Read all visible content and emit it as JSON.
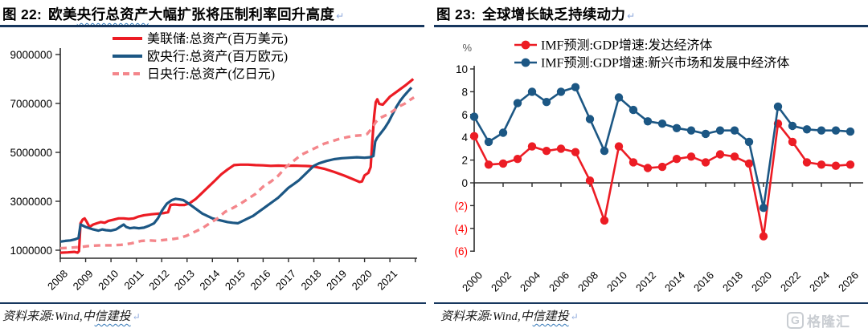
{
  "colors": {
    "rule_navy": "#17375e",
    "axis_black": "#2b2b2b",
    "series_red": "#ec1c24",
    "series_blue": "#1c5784",
    "series_pink": "#f4868b",
    "negative_tick_red": "#ff0000",
    "percent_gray": "#595959",
    "logo_gray": "#c9cdd2"
  },
  "left_panel": {
    "title_prefix": "图 22:",
    "title_pre": "欧美",
    "title_wavy": "央行总资产",
    "title_post": "大幅扩张将压制利率回升高度",
    "paragraph_mark": "↵",
    "source_pre": "资料来源:Wind,中",
    "source_wavy": "信建投",
    "source_mark": "↵"
  },
  "right_panel": {
    "title_prefix": "图 23:",
    "title_text": "全球增长缺乏持续动力",
    "paragraph_mark": "↵",
    "source_pre": "资料来源:Wind,中",
    "source_wavy": "信建投",
    "source_mark": "↵",
    "logo_letter": "G",
    "logo_text": "格隆汇"
  },
  "chart_data": [
    {
      "type": "line",
      "title": "欧美央行总资产大幅扩张将压制利率回升高度",
      "xlabel": "",
      "ylabel": "",
      "ylim": [
        1000000,
        9200000
      ],
      "y_ticks": [
        1000000,
        3000000,
        5000000,
        7000000,
        9000000
      ],
      "x_ticks": [
        2008,
        2009,
        2010,
        2011,
        2012,
        2013,
        2014,
        2015,
        2016,
        2017,
        2018,
        2019,
        2020,
        2021,
        2022
      ],
      "x_labels": [
        2008,
        2009,
        2010,
        2011,
        2012,
        2013,
        2014,
        2015,
        2016,
        2017,
        2018,
        2019,
        2020,
        2021
      ],
      "grid": false,
      "legend_position": "top-center",
      "series": [
        {
          "name": "美联储:总资产(百万美元)",
          "color": "#ec1c24",
          "dash": "solid",
          "points": [
            [
              2008.0,
              900000
            ],
            [
              2008.3,
              910000
            ],
            [
              2008.55,
              930000
            ],
            [
              2008.68,
              900000
            ],
            [
              2008.74,
              960000
            ],
            [
              2008.8,
              2100000
            ],
            [
              2008.88,
              2250000
            ],
            [
              2008.96,
              2300000
            ],
            [
              2009.05,
              2150000
            ],
            [
              2009.15,
              1950000
            ],
            [
              2009.3,
              2050000
            ],
            [
              2009.45,
              2100000
            ],
            [
              2009.6,
              2150000
            ],
            [
              2009.75,
              2120000
            ],
            [
              2009.9,
              2200000
            ],
            [
              2010.1,
              2250000
            ],
            [
              2010.3,
              2300000
            ],
            [
              2010.5,
              2300000
            ],
            [
              2010.7,
              2280000
            ],
            [
              2010.9,
              2300000
            ],
            [
              2011.1,
              2380000
            ],
            [
              2011.3,
              2430000
            ],
            [
              2011.6,
              2470000
            ],
            [
              2011.9,
              2500000
            ],
            [
              2012.1,
              2520000
            ],
            [
              2012.25,
              2550000
            ],
            [
              2012.35,
              2850000
            ],
            [
              2012.5,
              2870000
            ],
            [
              2012.7,
              2850000
            ],
            [
              2012.9,
              2850000
            ],
            [
              2013.1,
              2920000
            ],
            [
              2013.35,
              3100000
            ],
            [
              2013.6,
              3350000
            ],
            [
              2013.85,
              3600000
            ],
            [
              2014.1,
              3850000
            ],
            [
              2014.35,
              4100000
            ],
            [
              2014.6,
              4300000
            ],
            [
              2014.85,
              4480000
            ],
            [
              2015.1,
              4500000
            ],
            [
              2015.4,
              4500000
            ],
            [
              2015.7,
              4480000
            ],
            [
              2016.0,
              4470000
            ],
            [
              2016.3,
              4450000
            ],
            [
              2016.6,
              4460000
            ],
            [
              2016.9,
              4450000
            ],
            [
              2017.2,
              4460000
            ],
            [
              2017.5,
              4450000
            ],
            [
              2017.8,
              4440000
            ],
            [
              2018.0,
              4420000
            ],
            [
              2018.4,
              4330000
            ],
            [
              2018.8,
              4200000
            ],
            [
              2019.2,
              4050000
            ],
            [
              2019.5,
              3920000
            ],
            [
              2019.8,
              3790000
            ],
            [
              2019.9,
              3810000
            ],
            [
              2020.0,
              4060000
            ],
            [
              2020.15,
              4160000
            ],
            [
              2020.24,
              4400000
            ],
            [
              2020.3,
              5400000
            ],
            [
              2020.38,
              6500000
            ],
            [
              2020.44,
              7050000
            ],
            [
              2020.5,
              7170000
            ],
            [
              2020.58,
              6980000
            ],
            [
              2020.72,
              6950000
            ],
            [
              2020.85,
              7100000
            ],
            [
              2021.0,
              7280000
            ],
            [
              2021.2,
              7430000
            ],
            [
              2021.4,
              7580000
            ],
            [
              2021.6,
              7730000
            ],
            [
              2021.8,
              7900000
            ],
            [
              2021.92,
              8000000
            ]
          ]
        },
        {
          "name": "欧央行:总资产(百万欧元)",
          "color": "#1c5784",
          "dash": "solid",
          "points": [
            [
              2008.0,
              1350000
            ],
            [
              2008.2,
              1380000
            ],
            [
              2008.4,
              1400000
            ],
            [
              2008.6,
              1450000
            ],
            [
              2008.72,
              1500000
            ],
            [
              2008.8,
              2050000
            ],
            [
              2008.9,
              2000000
            ],
            [
              2009.0,
              1950000
            ],
            [
              2009.15,
              1900000
            ],
            [
              2009.3,
              1850000
            ],
            [
              2009.5,
              1800000
            ],
            [
              2009.65,
              1850000
            ],
            [
              2009.8,
              1820000
            ],
            [
              2010.0,
              1800000
            ],
            [
              2010.2,
              1850000
            ],
            [
              2010.35,
              1950000
            ],
            [
              2010.5,
              2050000
            ],
            [
              2010.6,
              1950000
            ],
            [
              2010.75,
              1900000
            ],
            [
              2010.9,
              1920000
            ],
            [
              2011.1,
              1900000
            ],
            [
              2011.3,
              1920000
            ],
            [
              2011.5,
              2000000
            ],
            [
              2011.7,
              2100000
            ],
            [
              2011.85,
              2300000
            ],
            [
              2012.0,
              2600000
            ],
            [
              2012.2,
              2900000
            ],
            [
              2012.4,
              3050000
            ],
            [
              2012.55,
              3100000
            ],
            [
              2012.7,
              3080000
            ],
            [
              2012.85,
              3050000
            ],
            [
              2013.0,
              2950000
            ],
            [
              2013.2,
              2800000
            ],
            [
              2013.4,
              2650000
            ],
            [
              2013.6,
              2500000
            ],
            [
              2013.8,
              2400000
            ],
            [
              2014.0,
              2300000
            ],
            [
              2014.2,
              2250000
            ],
            [
              2014.4,
              2200000
            ],
            [
              2014.6,
              2150000
            ],
            [
              2014.8,
              2120000
            ],
            [
              2015.0,
              2100000
            ],
            [
              2015.2,
              2200000
            ],
            [
              2015.4,
              2300000
            ],
            [
              2015.6,
              2400000
            ],
            [
              2015.8,
              2550000
            ],
            [
              2016.0,
              2700000
            ],
            [
              2016.2,
              2850000
            ],
            [
              2016.4,
              3000000
            ],
            [
              2016.6,
              3150000
            ],
            [
              2016.8,
              3350000
            ],
            [
              2017.0,
              3550000
            ],
            [
              2017.2,
              3700000
            ],
            [
              2017.4,
              3850000
            ],
            [
              2017.6,
              4050000
            ],
            [
              2017.8,
              4250000
            ],
            [
              2018.0,
              4450000
            ],
            [
              2018.2,
              4550000
            ],
            [
              2018.5,
              4650000
            ],
            [
              2018.8,
              4720000
            ],
            [
              2019.1,
              4760000
            ],
            [
              2019.4,
              4780000
            ],
            [
              2019.7,
              4800000
            ],
            [
              2020.0,
              4780000
            ],
            [
              2020.2,
              4800000
            ],
            [
              2020.35,
              4850000
            ],
            [
              2020.42,
              5450000
            ],
            [
              2020.5,
              5600000
            ],
            [
              2020.65,
              5800000
            ],
            [
              2020.8,
              6000000
            ],
            [
              2020.95,
              6250000
            ],
            [
              2021.1,
              6550000
            ],
            [
              2021.25,
              6850000
            ],
            [
              2021.4,
              7100000
            ],
            [
              2021.55,
              7300000
            ],
            [
              2021.7,
              7480000
            ],
            [
              2021.85,
              7650000
            ]
          ]
        },
        {
          "name": "日央行:总资产(亿日元)",
          "color": "#f4868b",
          "dash": "dashed",
          "points": [
            [
              2008.0,
              1080000
            ],
            [
              2008.4,
              1100000
            ],
            [
              2008.8,
              1130000
            ],
            [
              2009.2,
              1180000
            ],
            [
              2009.6,
              1200000
            ],
            [
              2010.0,
              1200000
            ],
            [
              2010.4,
              1220000
            ],
            [
              2010.8,
              1280000
            ],
            [
              2011.2,
              1380000
            ],
            [
              2011.5,
              1400000
            ],
            [
              2011.8,
              1380000
            ],
            [
              2012.1,
              1420000
            ],
            [
              2012.4,
              1450000
            ],
            [
              2012.7,
              1500000
            ],
            [
              2013.0,
              1600000
            ],
            [
              2013.3,
              1750000
            ],
            [
              2013.6,
              1900000
            ],
            [
              2013.9,
              2100000
            ],
            [
              2014.2,
              2300000
            ],
            [
              2014.5,
              2570000
            ],
            [
              2014.8,
              2720000
            ],
            [
              2015.1,
              2900000
            ],
            [
              2015.4,
              3100000
            ],
            [
              2015.7,
              3300000
            ],
            [
              2016.0,
              3600000
            ],
            [
              2016.3,
              3800000
            ],
            [
              2016.6,
              4050000
            ],
            [
              2016.9,
              4400000
            ],
            [
              2017.2,
              4650000
            ],
            [
              2017.5,
              4900000
            ],
            [
              2017.8,
              5050000
            ],
            [
              2018.1,
              5200000
            ],
            [
              2018.4,
              5350000
            ],
            [
              2018.7,
              5450000
            ],
            [
              2019.0,
              5550000
            ],
            [
              2019.3,
              5620000
            ],
            [
              2019.6,
              5680000
            ],
            [
              2019.9,
              5700000
            ],
            [
              2020.1,
              5750000
            ],
            [
              2020.3,
              6000000
            ],
            [
              2020.45,
              6250000
            ],
            [
              2020.6,
              6400000
            ],
            [
              2020.8,
              6500000
            ],
            [
              2021.0,
              6600000
            ],
            [
              2021.2,
              6750000
            ],
            [
              2021.4,
              6900000
            ],
            [
              2021.6,
              7000000
            ],
            [
              2021.8,
              7150000
            ],
            [
              2021.95,
              7250000
            ]
          ]
        }
      ]
    },
    {
      "type": "line",
      "title": "全球增长缺乏持续动力",
      "xlabel": "",
      "ylabel": "%",
      "ylim": [
        -6,
        10
      ],
      "y_ticks": [
        10,
        8,
        6,
        4,
        2,
        0,
        -2,
        -4,
        -6
      ],
      "negative_tick_style": "parentheses-red",
      "x": [
        2000,
        2001,
        2002,
        2003,
        2004,
        2005,
        2006,
        2007,
        2008,
        2009,
        2010,
        2011,
        2012,
        2013,
        2014,
        2015,
        2016,
        2017,
        2018,
        2019,
        2020,
        2021,
        2022,
        2023,
        2024,
        2025,
        2026
      ],
      "x_labels": [
        2000,
        2002,
        2004,
        2006,
        2008,
        2010,
        2012,
        2014,
        2016,
        2018,
        2020,
        2022,
        2024,
        2026
      ],
      "grid": false,
      "legend_position": "top-center",
      "series": [
        {
          "name": "IMF预测:GDP增速:发达经济体",
          "color": "#ec1c24",
          "marker": "circle",
          "values": [
            4.1,
            1.6,
            1.7,
            2.1,
            3.2,
            2.8,
            3.0,
            2.7,
            0.2,
            -3.3,
            3.2,
            1.8,
            1.3,
            1.4,
            2.1,
            2.3,
            1.8,
            2.5,
            2.3,
            1.7,
            -4.7,
            5.2,
            3.6,
            1.8,
            1.6,
            1.5,
            1.6
          ]
        },
        {
          "name": "IMF预测:GDP增速:新兴市场和发展中经济体",
          "color": "#1c5784",
          "marker": "circle",
          "values": [
            5.8,
            3.6,
            4.4,
            7.0,
            8.0,
            7.1,
            8.0,
            8.4,
            5.6,
            2.8,
            7.5,
            6.4,
            5.4,
            5.2,
            4.8,
            4.6,
            4.3,
            4.6,
            4.6,
            3.6,
            -2.2,
            6.7,
            5.0,
            4.7,
            4.6,
            4.6,
            4.5
          ]
        }
      ]
    }
  ]
}
